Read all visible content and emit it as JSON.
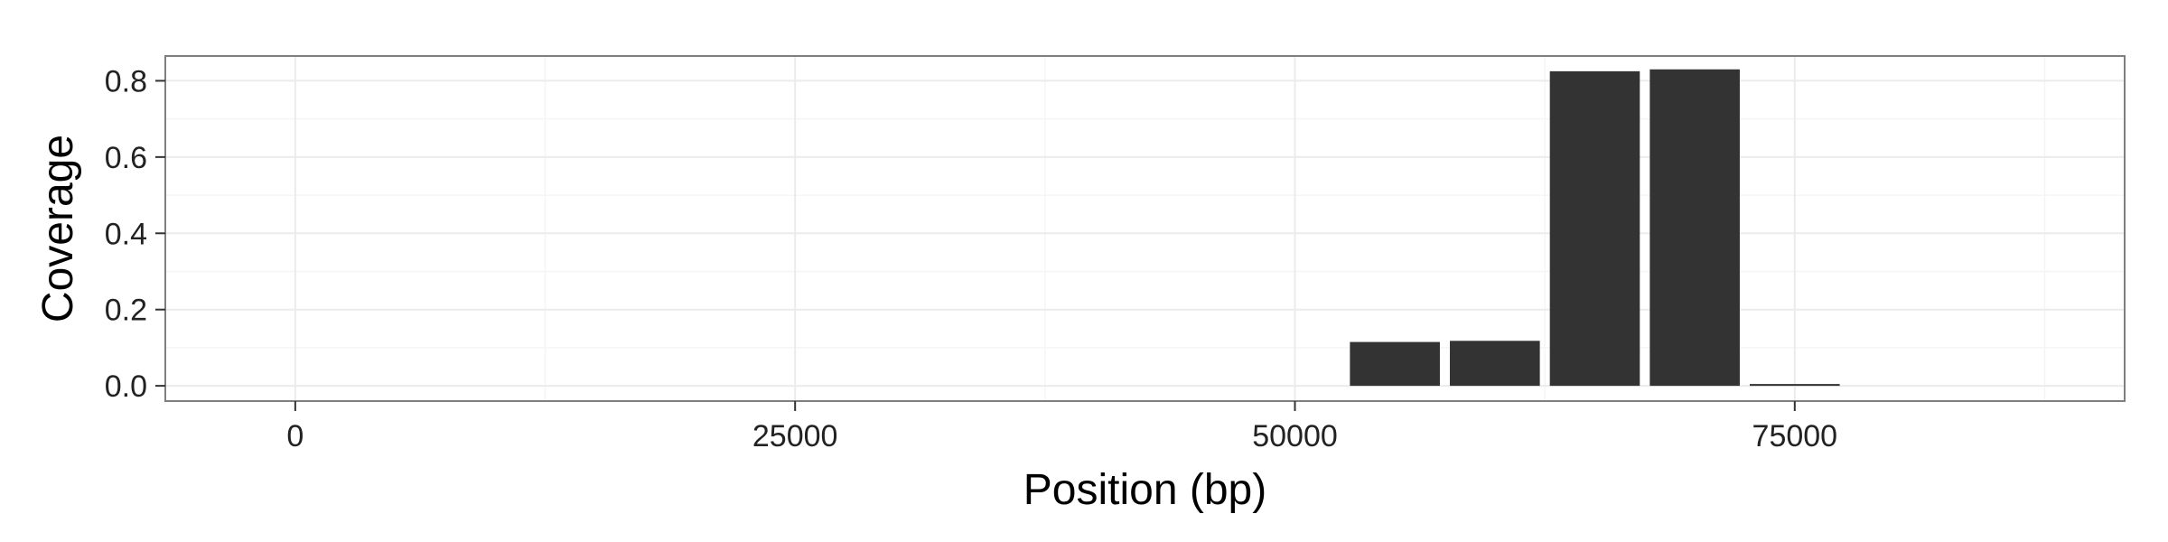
{
  "chart_data": {
    "type": "bar",
    "title": "",
    "xlabel": "Position (bp)",
    "ylabel": "Coverage",
    "xlim": [
      -6500,
      91500
    ],
    "ylim": [
      -0.04,
      0.865
    ],
    "x_ticks": [
      0,
      25000,
      50000,
      75000
    ],
    "x_tick_labels": [
      "0",
      "25000",
      "50000",
      "75000"
    ],
    "y_ticks": [
      0.0,
      0.2,
      0.4,
      0.6,
      0.8
    ],
    "y_tick_labels": [
      "0.0",
      "0.2",
      "0.4",
      "0.6",
      "0.8"
    ],
    "bar_width": 4500,
    "bars": [
      {
        "x": 55000,
        "value": 0.115
      },
      {
        "x": 60000,
        "value": 0.118
      },
      {
        "x": 65000,
        "value": 0.825
      },
      {
        "x": 70000,
        "value": 0.83
      },
      {
        "x": 75000,
        "value": 0.004
      }
    ],
    "grid": true,
    "legend": "none",
    "colors": {
      "bar": "#333333",
      "grid_major": "#ebebeb",
      "grid_minor": "#f5f5f5",
      "panel_border": "#7f7f7f",
      "tick": "#333333"
    }
  }
}
